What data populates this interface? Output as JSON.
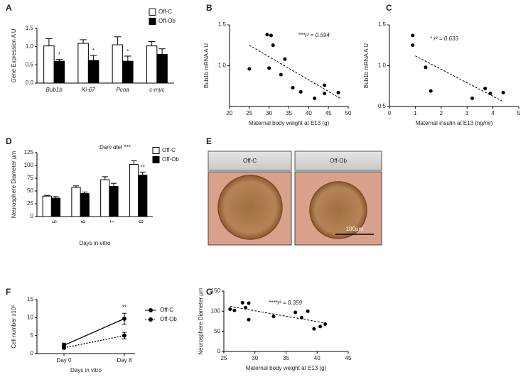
{
  "chart_data": [
    {
      "type": "bar",
      "panel": "A",
      "ylabel": "Gene Expression  A U",
      "categories": [
        "Bub1b",
        "Ki-67",
        "Pcna",
        "c-myc"
      ],
      "series": [
        {
          "name": "Off-C",
          "color": "#ffffff",
          "values": [
            1.02,
            1.09,
            1.05,
            1.02
          ],
          "errors": [
            0.2,
            0.1,
            0.22,
            0.12
          ]
        },
        {
          "name": "Off-Ob",
          "color": "#000000",
          "values": [
            0.6,
            0.62,
            0.6,
            0.79
          ],
          "errors": [
            0.05,
            0.14,
            0.14,
            0.15
          ]
        }
      ],
      "significance": [
        "*",
        "*",
        "*",
        null
      ],
      "ylim": [
        0,
        1.5
      ],
      "yticks": [
        {
          "value": 0,
          "label": "0.0"
        },
        0.5,
        {
          "value": 1,
          "label": "1.0"
        },
        1.5
      ]
    },
    {
      "type": "scatter",
      "panel": "B",
      "xlabel": "Maternal body weight at E13 (g)",
      "ylabel": "Bub1b mRNA  A U",
      "annotation": "***r² = 0.594",
      "x": [
        25,
        29.5,
        30.5,
        30,
        31,
        33,
        34,
        36,
        38,
        41.5,
        44,
        44,
        47.5
      ],
      "values": [
        0.96,
        1.38,
        1.37,
        0.97,
        1.25,
        0.89,
        1.08,
        0.73,
        0.68,
        0.6,
        0.76,
        0.66,
        0.67
      ],
      "trendline": {
        "x": [
          25,
          48
        ],
        "y": [
          1.25,
          0.6
        ]
      },
      "xlim": [
        20,
        50
      ],
      "xticks": [
        20,
        25,
        30,
        35,
        40,
        45,
        50
      ],
      "ylim": [
        0.5,
        1.5
      ],
      "yticks": [
        {
          "value": 1,
          "label": "1.0"
        },
        1.5
      ]
    },
    {
      "type": "scatter",
      "panel": "C",
      "xlabel": "Maternal insulin at E13 (ng/ml)",
      "ylabel": "Bub1b mRNA  A U",
      "annotation": "* r² = 0.633",
      "x": [
        0.9,
        0.9,
        1.4,
        1.6,
        3.2,
        3.7,
        3.9,
        4.4
      ],
      "values": [
        1.37,
        1.25,
        0.98,
        0.69,
        0.6,
        0.72,
        0.66,
        0.67
      ],
      "trendline": {
        "x": [
          1,
          4.4
        ],
        "y": [
          1.12,
          0.56
        ]
      },
      "xlim": [
        0,
        5
      ],
      "xticks": [
        0,
        1,
        2,
        3,
        4,
        5
      ],
      "ylim": [
        0.5,
        1.5
      ],
      "yticks": [
        0.5,
        {
          "value": 1,
          "label": "1.0"
        },
        1.5
      ]
    },
    {
      "type": "bar",
      "panel": "D",
      "ylabel": "Neurosphere Diameter  µm",
      "xlabel": "Days in vitro",
      "annotation": "Dam diet ***",
      "categories": [
        "5",
        "6",
        "7",
        "8"
      ],
      "series": [
        {
          "name": "Off-C",
          "color": "#ffffff",
          "values": [
            40,
            57,
            72,
            102
          ],
          "errors": [
            1.5,
            3,
            6,
            7
          ]
        },
        {
          "name": "Off-Ob",
          "color": "#000000",
          "values": [
            36,
            45,
            59,
            81
          ],
          "errors": [
            3,
            3,
            6,
            6
          ]
        }
      ],
      "significance": [
        null,
        null,
        null,
        "**"
      ],
      "ylim": [
        0,
        125
      ],
      "yticks": [
        0,
        25,
        50,
        75,
        100,
        125
      ]
    },
    {
      "type": "image",
      "panel": "E",
      "panels": [
        "Off-C",
        "Off-Ob"
      ],
      "scale_bar": "100µm"
    },
    {
      "type": "line",
      "panel": "F",
      "ylabel": "Cell number x10⁵",
      "xlabel": "Days in vitro",
      "categories": [
        "Day 0",
        "Day 8"
      ],
      "series": [
        {
          "name": "Off-C",
          "color": "#000000",
          "line_style": "solid",
          "values": [
            2.3,
            9.7
          ],
          "errors": [
            0.6,
            1.5
          ]
        },
        {
          "name": "Off-Ob",
          "color": "#000000",
          "line_style": "dashed",
          "values": [
            1.6,
            5.0
          ],
          "errors": [
            0.3,
            0.9
          ]
        }
      ],
      "significance": [
        null,
        "**"
      ],
      "ylim": [
        0,
        15
      ],
      "yticks": [
        0,
        5,
        10,
        15
      ]
    },
    {
      "type": "scatter",
      "panel": "G",
      "xlabel": "Maternal body weight at E13 (g)",
      "ylabel": "Neurosphere Diameter  µm",
      "annotation": "****r² = 0.359",
      "x": [
        26,
        26.7,
        28,
        28.5,
        29,
        29,
        33,
        36.5,
        37.5,
        38.5,
        39.5,
        40.5,
        41.3
      ],
      "values": [
        105,
        102,
        121,
        109,
        79,
        120,
        87,
        97,
        84,
        100,
        56,
        62,
        68
      ],
      "trendline": {
        "x": [
          26,
          41.5
        ],
        "y": [
          112,
          70
        ]
      },
      "xlim": [
        25,
        45
      ],
      "xticks": [
        25,
        30,
        35,
        40,
        45
      ],
      "ylim": [
        0,
        150
      ],
      "yticks": [
        0,
        50,
        100,
        150
      ]
    }
  ]
}
